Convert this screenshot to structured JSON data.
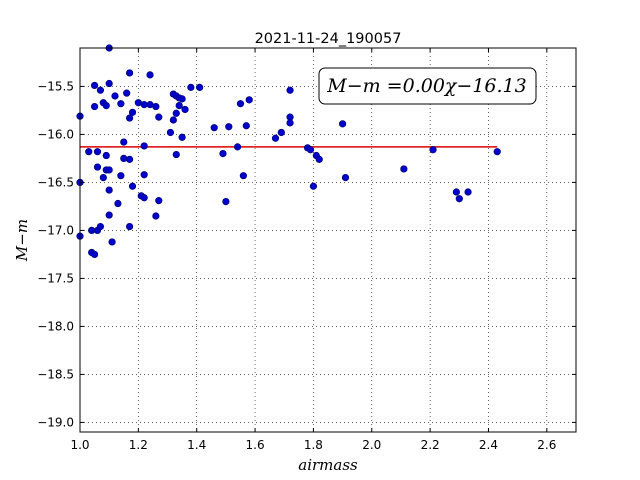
{
  "chart_data": {
    "type": "scatter",
    "title": "2021-11-24_190057",
    "xlabel": "airmass",
    "ylabel": "M−m",
    "xlim": [
      1.0,
      2.7
    ],
    "ylim": [
      -19.1,
      -15.1
    ],
    "y_inverted": true,
    "grid": true,
    "grid_style": "dotted",
    "x_ticks": [
      1.0,
      1.2,
      1.4,
      1.6,
      1.8,
      2.0,
      2.2,
      2.4,
      2.6
    ],
    "x_tick_labels": [
      "1.0",
      "1.2",
      "1.4",
      "1.6",
      "1.8",
      "2.0",
      "2.2",
      "2.4",
      "2.6"
    ],
    "y_ticks": [
      -15.5,
      -16.0,
      -16.5,
      -17.0,
      -17.5,
      -18.0,
      -18.5,
      -19.0
    ],
    "y_tick_labels": [
      "−15.5",
      "−16.0",
      "−16.5",
      "−17.0",
      "−17.5",
      "−18.0",
      "−18.5",
      "−19.0"
    ],
    "annotation": "M−m =0.00χ−16.13",
    "colors": {
      "points": "#0000cc",
      "points_edge": "#000066",
      "fit_line": "#dd0000"
    },
    "fit_line": {
      "x": [
        1.0,
        2.43
      ],
      "y": [
        -16.13,
        -16.13
      ]
    },
    "points": [
      [
        1.0,
        -15.81
      ],
      [
        1.0,
        -16.5
      ],
      [
        1.0,
        -17.06
      ],
      [
        1.03,
        -16.18
      ],
      [
        1.04,
        -17.0
      ],
      [
        1.04,
        -17.23
      ],
      [
        1.05,
        -17.25
      ],
      [
        1.05,
        -15.71
      ],
      [
        1.05,
        -15.49
      ],
      [
        1.06,
        -16.18
      ],
      [
        1.06,
        -16.34
      ],
      [
        1.06,
        -17.0
      ],
      [
        1.07,
        -15.54
      ],
      [
        1.07,
        -16.96
      ],
      [
        1.08,
        -16.45
      ],
      [
        1.08,
        -15.67
      ],
      [
        1.09,
        -15.7
      ],
      [
        1.09,
        -16.37
      ],
      [
        1.09,
        -16.22
      ],
      [
        1.1,
        -15.47
      ],
      [
        1.1,
        -16.37
      ],
      [
        1.1,
        -16.58
      ],
      [
        1.1,
        -16.84
      ],
      [
        1.1,
        -15.1
      ],
      [
        1.11,
        -17.12
      ],
      [
        1.12,
        -15.6
      ],
      [
        1.13,
        -16.72
      ],
      [
        1.14,
        -16.43
      ],
      [
        1.14,
        -15.68
      ],
      [
        1.15,
        -16.08
      ],
      [
        1.15,
        -16.25
      ],
      [
        1.16,
        -15.57
      ],
      [
        1.17,
        -16.26
      ],
      [
        1.17,
        -16.96
      ],
      [
        1.17,
        -15.83
      ],
      [
        1.17,
        -15.36
      ],
      [
        1.18,
        -15.77
      ],
      [
        1.18,
        -16.54
      ],
      [
        1.2,
        -15.67
      ],
      [
        1.21,
        -16.64
      ],
      [
        1.22,
        -16.66
      ],
      [
        1.22,
        -16.42
      ],
      [
        1.22,
        -15.69
      ],
      [
        1.22,
        -16.12
      ],
      [
        1.24,
        -15.69
      ],
      [
        1.24,
        -15.38
      ],
      [
        1.26,
        -15.71
      ],
      [
        1.26,
        -16.85
      ],
      [
        1.27,
        -16.69
      ],
      [
        1.27,
        -15.82
      ],
      [
        1.31,
        -15.98
      ],
      [
        1.32,
        -15.85
      ],
      [
        1.32,
        -15.58
      ],
      [
        1.33,
        -15.6
      ],
      [
        1.33,
        -15.78
      ],
      [
        1.33,
        -16.21
      ],
      [
        1.34,
        -15.7
      ],
      [
        1.34,
        -15.62
      ],
      [
        1.35,
        -15.63
      ],
      [
        1.35,
        -16.03
      ],
      [
        1.36,
        -15.74
      ],
      [
        1.38,
        -15.51
      ],
      [
        1.41,
        -15.51
      ],
      [
        1.46,
        -15.93
      ],
      [
        1.49,
        -16.2
      ],
      [
        1.5,
        -16.7
      ],
      [
        1.51,
        -15.92
      ],
      [
        1.54,
        -16.13
      ],
      [
        1.55,
        -15.68
      ],
      [
        1.56,
        -16.43
      ],
      [
        1.57,
        -15.91
      ],
      [
        1.58,
        -15.64
      ],
      [
        1.67,
        -16.04
      ],
      [
        1.69,
        -15.98
      ],
      [
        1.72,
        -15.54
      ],
      [
        1.72,
        -15.82
      ],
      [
        1.72,
        -15.88
      ],
      [
        1.78,
        -16.14
      ],
      [
        1.79,
        -16.16
      ],
      [
        1.8,
        -16.54
      ],
      [
        1.81,
        -16.22
      ],
      [
        1.82,
        -16.26
      ],
      [
        1.9,
        -15.89
      ],
      [
        1.91,
        -16.45
      ],
      [
        2.11,
        -16.36
      ],
      [
        2.21,
        -16.16
      ],
      [
        2.29,
        -16.6
      ],
      [
        2.3,
        -16.67
      ],
      [
        2.33,
        -16.6
      ],
      [
        2.43,
        -16.18
      ]
    ]
  }
}
